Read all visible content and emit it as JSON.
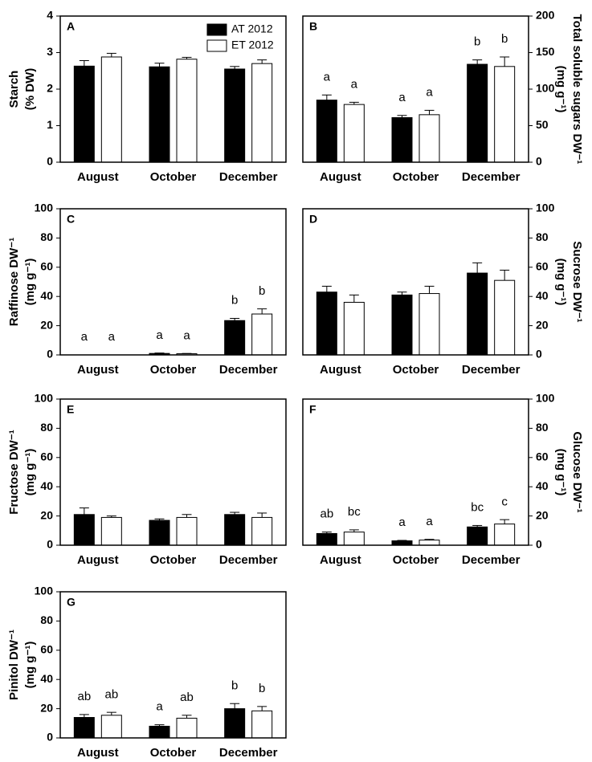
{
  "chart_data": [
    {
      "type": "bar",
      "panel": "A",
      "ylabel": [
        "Starch",
        "(% DW)"
      ],
      "categories": [
        "August",
        "October",
        "December"
      ],
      "ylim": [
        0,
        4
      ],
      "yticks": [
        0,
        1,
        2,
        3,
        4
      ],
      "series": [
        {
          "name": "AT 2012",
          "color": "#000000",
          "values": [
            2.63,
            2.61,
            2.55
          ],
          "errors": [
            0.15,
            0.1,
            0.07
          ]
        },
        {
          "name": "ET 2012",
          "color": "#ffffff",
          "values": [
            2.88,
            2.82,
            2.7
          ],
          "errors": [
            0.1,
            0.05,
            0.1
          ]
        }
      ]
    },
    {
      "type": "bar",
      "panel": "B",
      "y2label": [
        "Total soluble sugars DW⁻¹",
        "(mg g⁻¹)"
      ],
      "categories": [
        "August",
        "October",
        "December"
      ],
      "y2lim": [
        0,
        200
      ],
      "y2ticks": [
        0,
        50,
        100,
        150,
        200
      ],
      "series": [
        {
          "color": "#000000",
          "axis": "y2",
          "values": [
            85,
            61,
            134
          ],
          "errors": [
            7,
            3,
            6
          ],
          "letters": [
            "a",
            "a",
            "b"
          ]
        },
        {
          "color": "#ffffff",
          "axis": "y2",
          "values": [
            79,
            65,
            131
          ],
          "errors": [
            3,
            6,
            13
          ],
          "letters": [
            "a",
            "a",
            "b"
          ]
        }
      ]
    },
    {
      "type": "bar",
      "panel": "C",
      "ylabel": [
        "Raffinose DW⁻¹",
        "(mg g⁻¹)"
      ],
      "categories": [
        "August",
        "October",
        "December"
      ],
      "ylim": [
        0,
        100
      ],
      "yticks": [
        0,
        20,
        40,
        60,
        80,
        100
      ],
      "series": [
        {
          "color": "#000000",
          "values": [
            0,
            1,
            23.5
          ],
          "errors": [
            0,
            0.3,
            1.5
          ],
          "letters": [
            "a",
            "a",
            "b"
          ]
        },
        {
          "color": "#ffffff",
          "values": [
            0,
            0.8,
            28
          ],
          "errors": [
            0,
            0.2,
            3.5
          ],
          "letters": [
            "a",
            "a",
            "b"
          ]
        }
      ]
    },
    {
      "type": "bar",
      "panel": "D",
      "y2label": [
        "Sucrose DW⁻¹",
        "(mg g⁻¹)"
      ],
      "categories": [
        "August",
        "October",
        "December"
      ],
      "y2lim": [
        0,
        100
      ],
      "y2ticks": [
        0,
        20,
        40,
        60,
        80,
        100
      ],
      "series": [
        {
          "color": "#000000",
          "axis": "y2",
          "values": [
            43,
            41,
            56
          ],
          "errors": [
            4,
            2,
            7
          ]
        },
        {
          "color": "#ffffff",
          "axis": "y2",
          "values": [
            36,
            42,
            51
          ],
          "errors": [
            5,
            5,
            7
          ]
        }
      ]
    },
    {
      "type": "bar",
      "panel": "E",
      "ylabel": [
        "Fructose DW⁻¹",
        "(mg g⁻¹)"
      ],
      "categories": [
        "August",
        "October",
        "December"
      ],
      "ylim": [
        0,
        100
      ],
      "yticks": [
        0,
        20,
        40,
        60,
        80,
        100
      ],
      "series": [
        {
          "color": "#000000",
          "values": [
            21,
            17,
            21
          ],
          "errors": [
            4.5,
            1,
            1.5
          ]
        },
        {
          "color": "#ffffff",
          "values": [
            19,
            19,
            19
          ],
          "errors": [
            1,
            2,
            3
          ]
        }
      ]
    },
    {
      "type": "bar",
      "panel": "F",
      "y2label": [
        "Glucose DW⁻¹",
        "(mg g⁻¹)"
      ],
      "categories": [
        "August",
        "October",
        "December"
      ],
      "y2lim": [
        0,
        100
      ],
      "y2ticks": [
        0,
        20,
        40,
        60,
        80,
        100
      ],
      "series": [
        {
          "color": "#000000",
          "axis": "y2",
          "values": [
            8,
            3,
            12.5
          ],
          "errors": [
            1,
            0.3,
            1
          ],
          "letters": [
            "ab",
            "a",
            "bc"
          ]
        },
        {
          "color": "#ffffff",
          "axis": "y2",
          "values": [
            9,
            3.5,
            14.5
          ],
          "errors": [
            1.5,
            0.5,
            3
          ],
          "letters": [
            "bc",
            "a",
            "c"
          ]
        }
      ]
    },
    {
      "type": "bar",
      "panel": "G",
      "ylabel": [
        "Pinitol DW⁻¹",
        "(mg g⁻¹)"
      ],
      "categories": [
        "August",
        "October",
        "December"
      ],
      "ylim": [
        0,
        100
      ],
      "yticks": [
        0,
        20,
        40,
        60,
        80,
        100
      ],
      "series": [
        {
          "color": "#000000",
          "values": [
            14,
            8,
            20
          ],
          "errors": [
            2,
            1,
            3.5
          ],
          "letters": [
            "ab",
            "a",
            "b"
          ]
        },
        {
          "color": "#ffffff",
          "values": [
            15.5,
            13.5,
            18.5
          ],
          "errors": [
            2,
            2,
            3
          ],
          "letters": [
            "ab",
            "ab",
            "b"
          ]
        }
      ]
    }
  ]
}
